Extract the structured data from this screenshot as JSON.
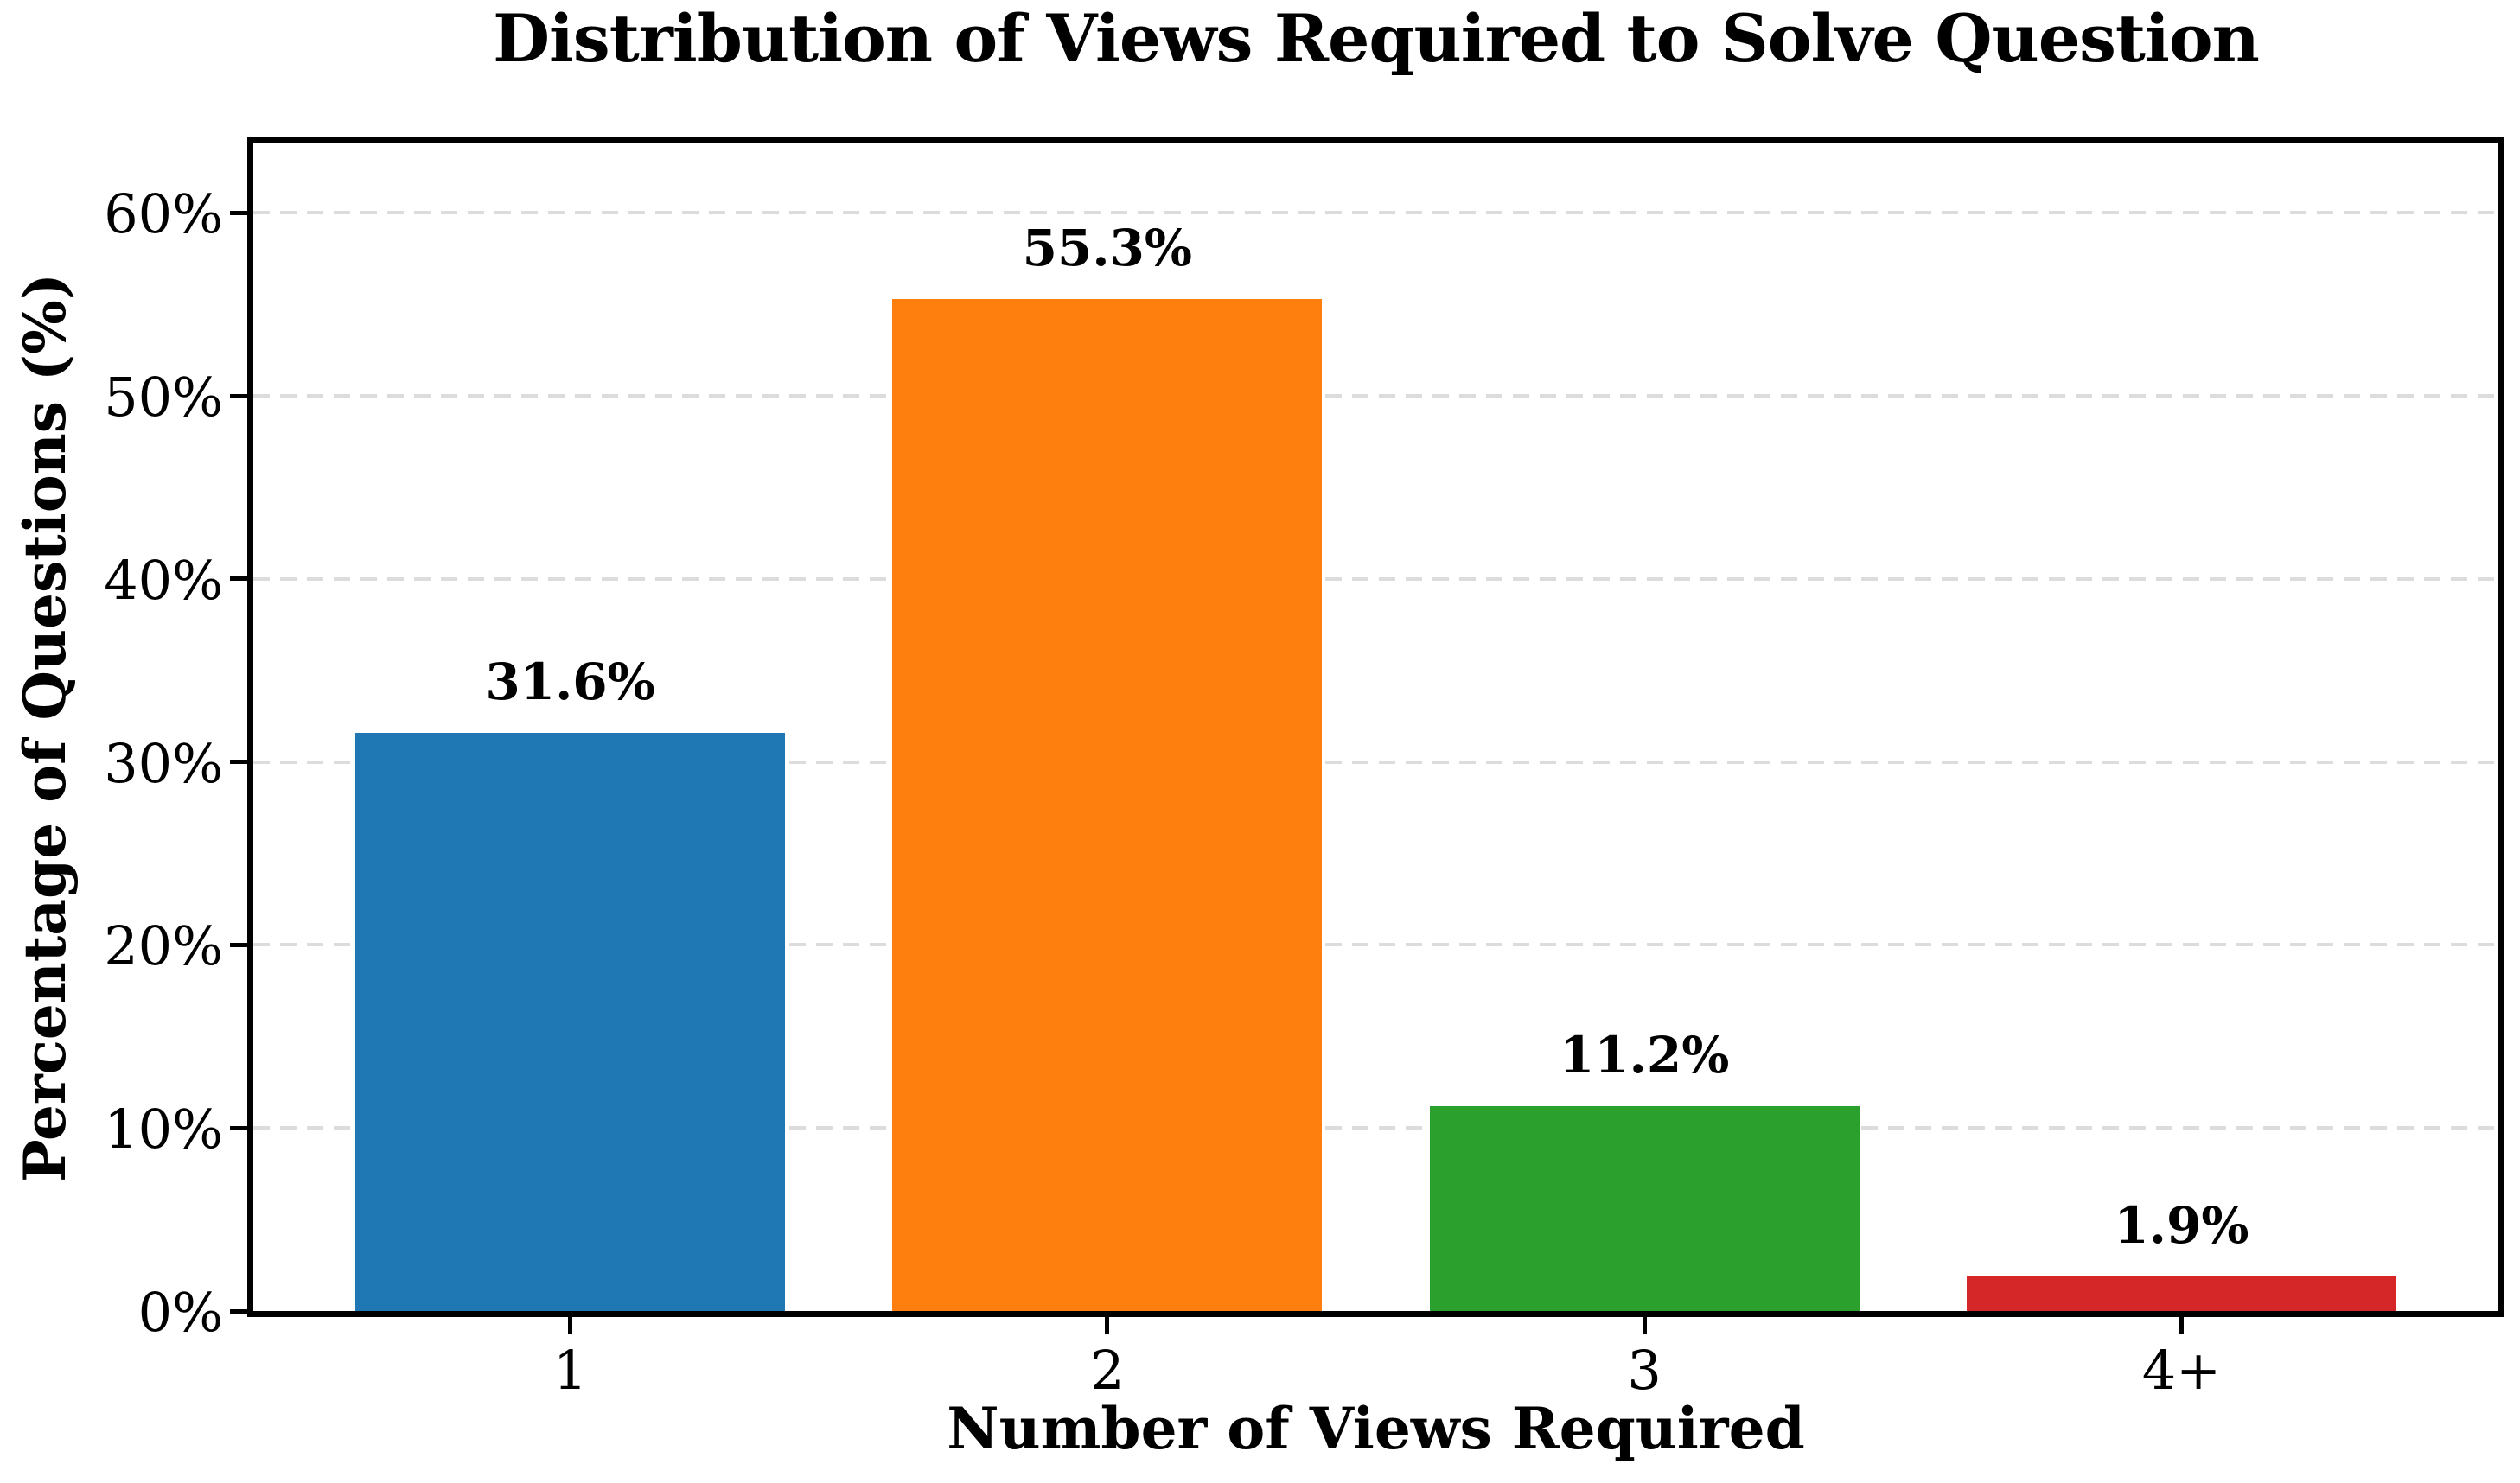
{
  "chart_data": {
    "type": "bar",
    "title": "Distribution of Views Required to Solve Question",
    "xlabel": "Number of Views Required",
    "ylabel": "Percentage of Questions (%)",
    "categories": [
      "1",
      "2",
      "3",
      "4+"
    ],
    "values": [
      31.6,
      55.3,
      11.2,
      1.9
    ],
    "data_labels": [
      "31.6%",
      "55.3%",
      "11.2%",
      "1.9%"
    ],
    "bar_colors": [
      "#1f77b4",
      "#ff7f0e",
      "#2ca02c",
      "#d62728"
    ],
    "ylim": [
      0,
      63.8
    ],
    "yticks": [
      {
        "value": 0,
        "label": "0%"
      },
      {
        "value": 10,
        "label": "10%"
      },
      {
        "value": 20,
        "label": "20%"
      },
      {
        "value": 30,
        "label": "30%"
      },
      {
        "value": 40,
        "label": "40%"
      },
      {
        "value": 50,
        "label": "50%"
      },
      {
        "value": 60,
        "label": "60%"
      }
    ],
    "grid": "horizontal-dashed",
    "grid_color": "#dcdcdc",
    "legend": "none",
    "bar_width_fraction": 0.8,
    "axis_color": "#000000",
    "background_color": "#ffffff"
  }
}
